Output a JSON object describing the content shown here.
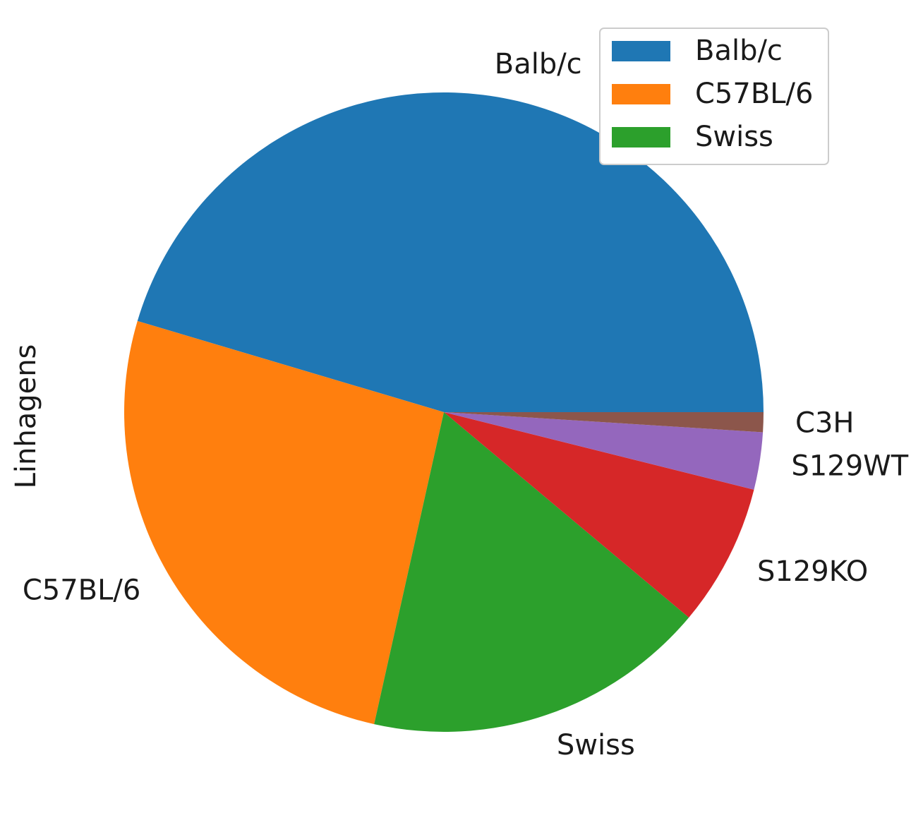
{
  "chart_data": {
    "type": "pie",
    "ylabel": "Linhagens",
    "categories": [
      "Balb/c",
      "C57BL/6",
      "Swiss",
      "S129KO",
      "S129WT",
      "C3H"
    ],
    "values": [
      45.4,
      26.1,
      17.4,
      7.2,
      2.9,
      1.0
    ],
    "colors": [
      "#1f77b4",
      "#ff7f0e",
      "#2ca02c",
      "#d62728",
      "#9467bd",
      "#8c564b"
    ],
    "start_angle_deg": 0,
    "direction": "counterclockwise",
    "legend": {
      "placement": "top-right",
      "entries": [
        "Balb/c",
        "C57BL/6",
        "Swiss"
      ]
    }
  }
}
